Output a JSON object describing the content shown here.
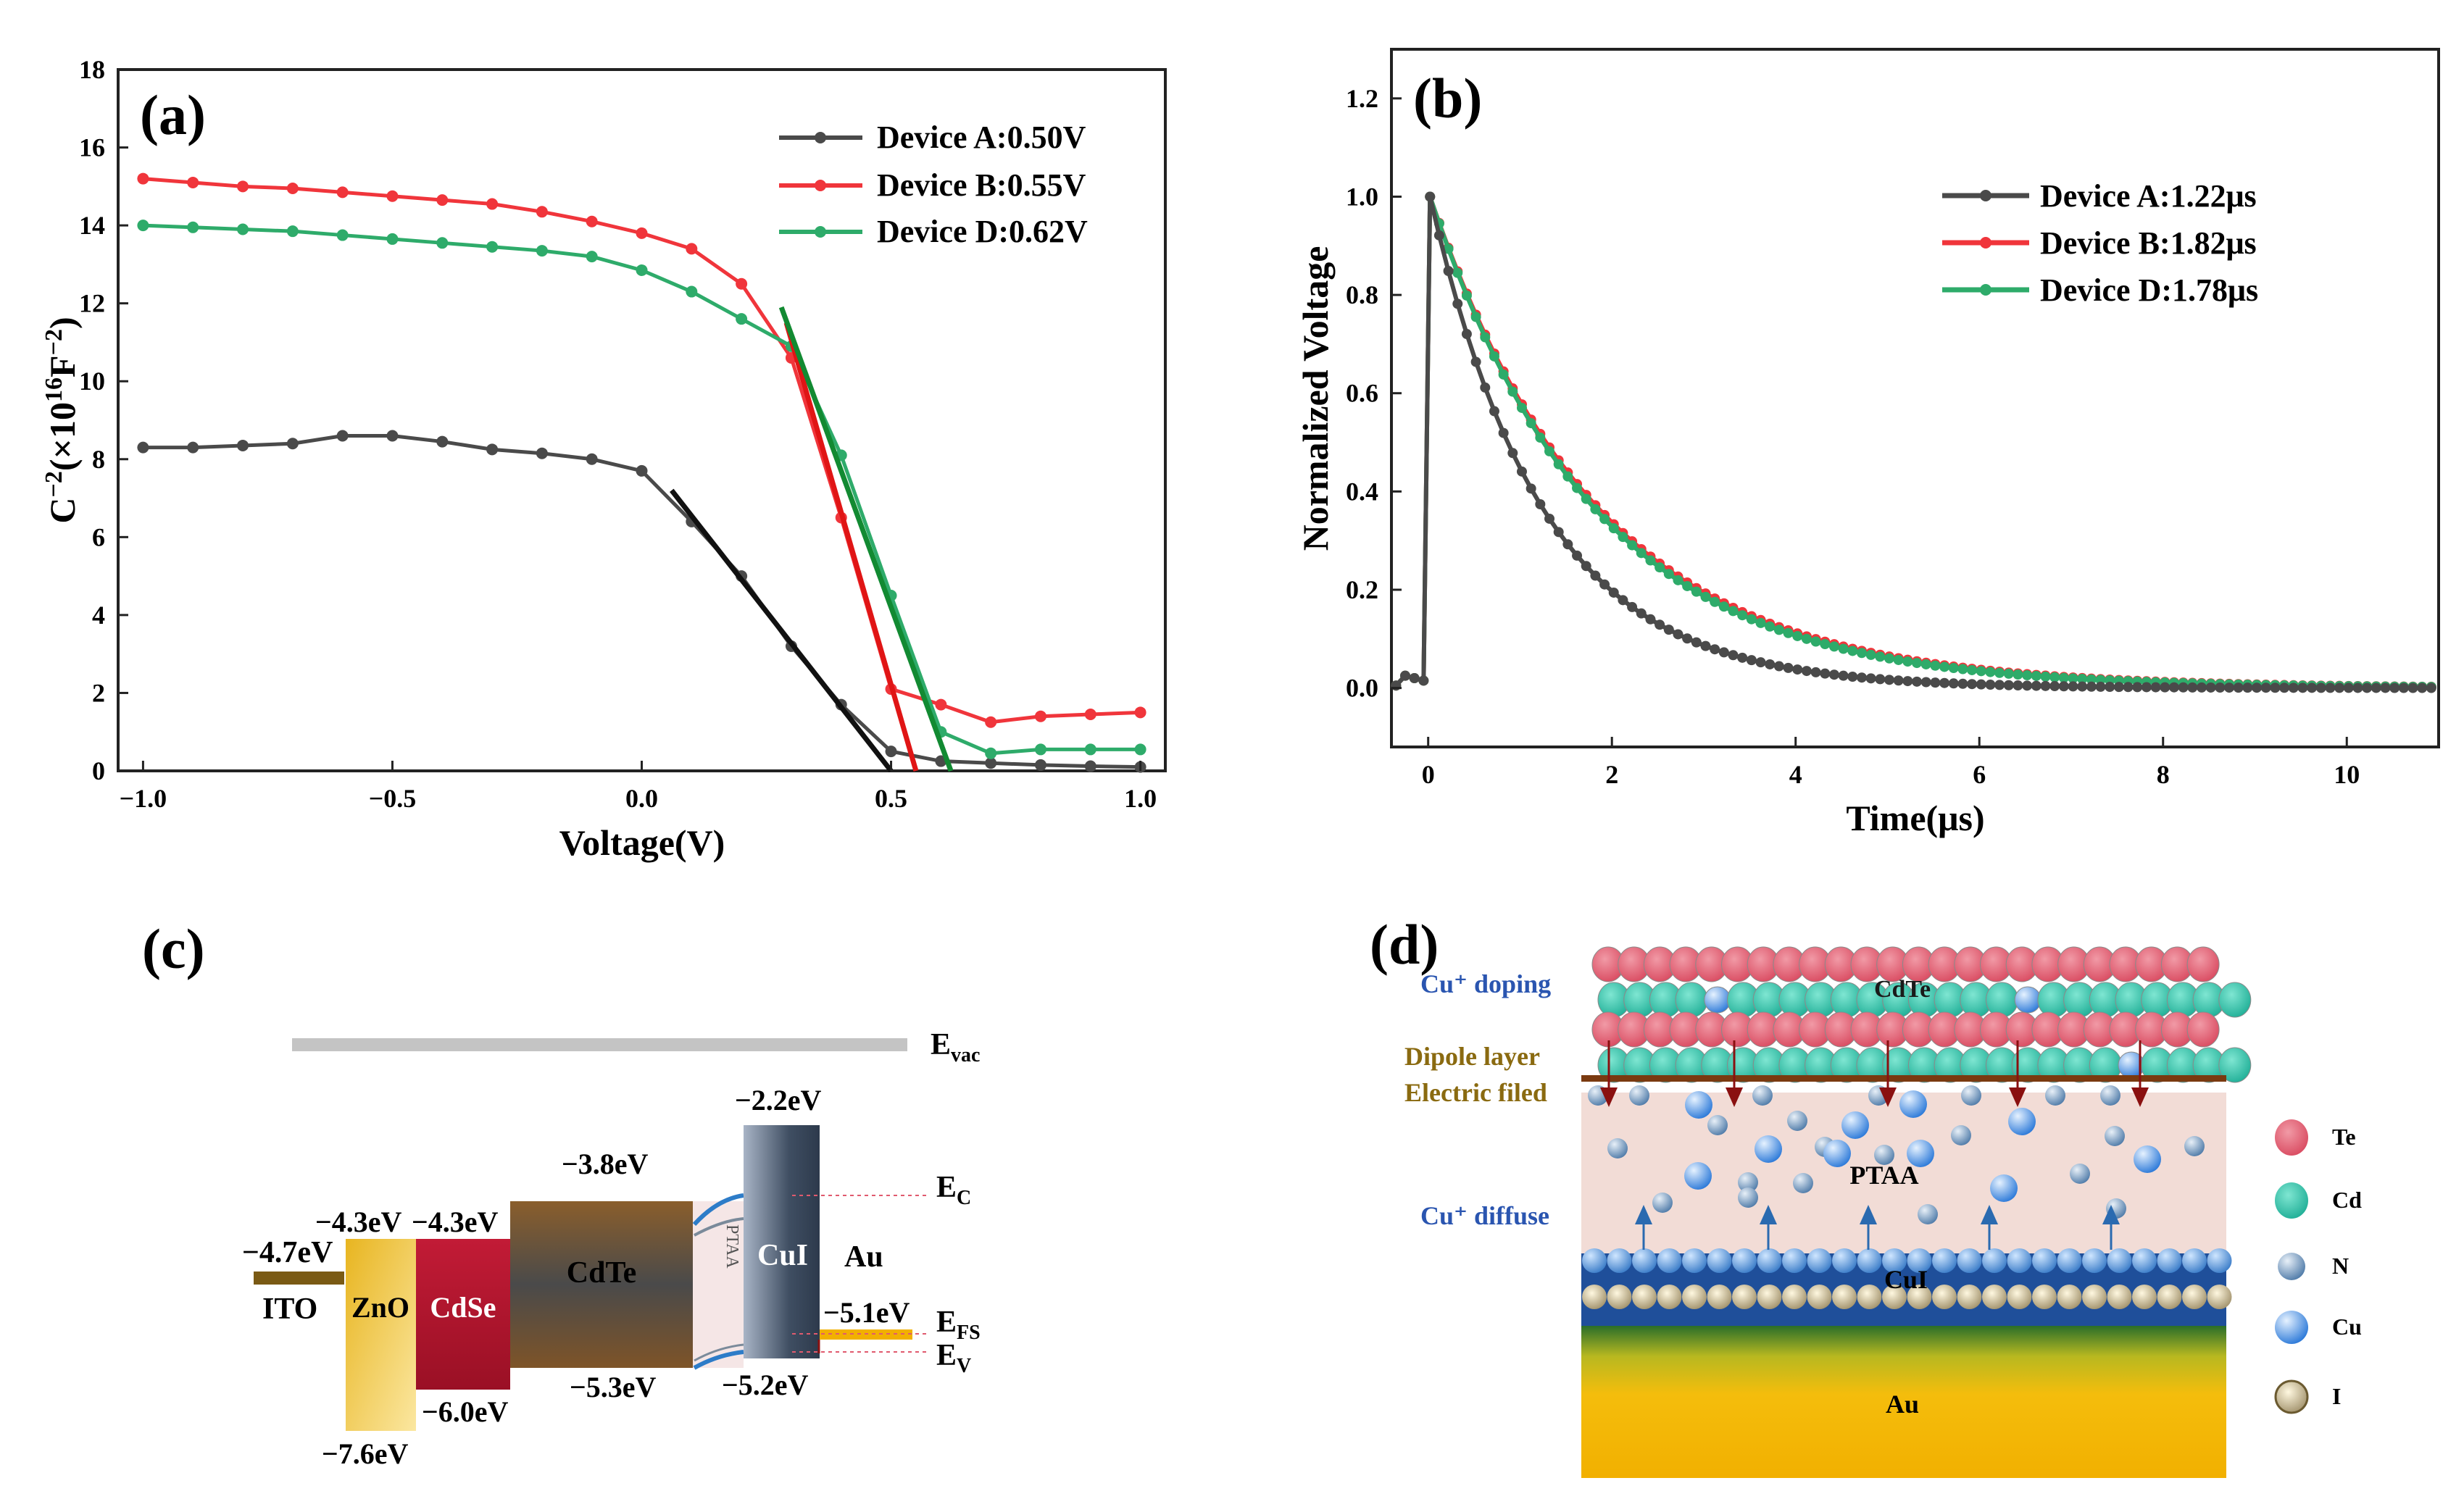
{
  "panels": {
    "a": "(a)",
    "b": "(b)",
    "c": "(c)",
    "d": "(d)"
  },
  "chart_data": [
    {
      "id": "a",
      "type": "line",
      "xlabel": "Voltage(V)",
      "ylabel_parts": {
        "base": "C",
        "sup1": "−2",
        "open": "(×10",
        "sup2": "16",
        "unit": "F",
        "sup3": "−2",
        "close": ")"
      },
      "xlim": [
        -1.05,
        1.05
      ],
      "ylim": [
        0,
        18
      ],
      "xticks": [
        -1.0,
        -0.5,
        0.0,
        0.5,
        1.0
      ],
      "xtick_labels": [
        "−1.0",
        "−0.5",
        "0.0",
        "0.5",
        "1.0"
      ],
      "yticks": [
        0,
        2,
        4,
        6,
        8,
        10,
        12,
        14,
        16,
        18
      ],
      "ytick_labels": [
        "0",
        "2",
        "4",
        "6",
        "8",
        "10",
        "12",
        "14",
        "16",
        "18"
      ],
      "x": [
        -1.0,
        -0.9,
        -0.8,
        -0.7,
        -0.6,
        -0.5,
        -0.4,
        -0.3,
        -0.2,
        -0.1,
        0.0,
        0.1,
        0.2,
        0.3,
        0.4,
        0.5,
        0.6,
        0.7,
        0.8,
        0.9,
        1.0
      ],
      "series": [
        {
          "name": "Device A:0.50V",
          "color": "#4a4a4a",
          "values": [
            8.3,
            8.3,
            8.35,
            8.4,
            8.6,
            8.6,
            8.45,
            8.25,
            8.15,
            8.0,
            7.7,
            6.4,
            5.0,
            3.2,
            1.7,
            0.5,
            0.25,
            0.2,
            0.15,
            0.12,
            0.1
          ]
        },
        {
          "name": "Device B:0.55V",
          "color": "#f0353b",
          "values": [
            15.2,
            15.1,
            15.0,
            14.95,
            14.85,
            14.75,
            14.65,
            14.55,
            14.35,
            14.1,
            13.8,
            13.4,
            12.5,
            10.6,
            6.5,
            2.1,
            1.7,
            1.25,
            1.4,
            1.45,
            1.5
          ]
        },
        {
          "name": "Device D:0.62V",
          "color": "#2eab6a",
          "values": [
            14.0,
            13.95,
            13.9,
            13.85,
            13.75,
            13.65,
            13.55,
            13.45,
            13.35,
            13.2,
            12.85,
            12.3,
            11.6,
            10.9,
            8.1,
            4.5,
            1.0,
            0.45,
            0.55,
            0.55,
            0.55
          ]
        }
      ],
      "fit_lines": [
        {
          "color": "#111111",
          "from": [
            0.06,
            7.2
          ],
          "to": [
            0.5,
            0.0
          ]
        },
        {
          "color": "#e01515",
          "from": [
            0.29,
            11.5
          ],
          "to": [
            0.55,
            0.0
          ]
        },
        {
          "color": "#128a32",
          "from": [
            0.28,
            11.9
          ],
          "to": [
            0.62,
            0.0
          ]
        }
      ]
    },
    {
      "id": "b",
      "type": "line",
      "xlabel": "Time(μs)",
      "ylabel": "Normalized Voltage",
      "xlim": [
        -0.4,
        11.0
      ],
      "ylim": [
        -0.12,
        1.3
      ],
      "xticks": [
        0,
        2,
        4,
        6,
        8,
        10
      ],
      "xtick_labels": [
        "0",
        "2",
        "4",
        "6",
        "8",
        "10"
      ],
      "yticks": [
        0.0,
        0.2,
        0.4,
        0.6,
        0.8,
        1.0,
        1.2
      ],
      "ytick_labels": [
        "0.0",
        "0.2",
        "0.4",
        "0.6",
        "0.8",
        "1.0",
        "1.2"
      ],
      "t_pre_start": -0.35,
      "t_peak": 0.02,
      "t_step": 0.1,
      "t_end": 10.95,
      "series": [
        {
          "name": "Device A:1.22μs",
          "color": "#4a4a4a",
          "tau": 1.22,
          "draw_order": 2
        },
        {
          "name": "Device B:1.82μs",
          "color": "#f0353b",
          "tau": 1.82,
          "draw_order": 0
        },
        {
          "name": "Device D:1.78μs",
          "color": "#2eab6a",
          "tau": 1.78,
          "draw_order": 1
        }
      ]
    }
  ],
  "band_diagram": {
    "evac": "E<sub>vac</sub>",
    "evac_main": "E",
    "evac_sub": "vac",
    "ec_main": "E",
    "ec_sub": "C",
    "efs_main": "E",
    "efs_sub": "FS",
    "ev_main": "E",
    "ev_sub": "V",
    "ito": "ITO",
    "zno": "ZnO",
    "cdse": "CdSe",
    "cdte": "CdTe",
    "ptaa": "PTAA",
    "cui": "CuI",
    "au": "Au",
    "levels": {
      "ito": "−4.7eV",
      "zno_cb": "−4.3eV",
      "cdse_cb": "−4.3eV",
      "zno_vb": "−7.6eV",
      "cdse_vb": "−6.0eV",
      "cdte_cb": "−3.8eV",
      "cdte_vb": "−5.3eV",
      "cui_cb": "−2.2eV",
      "cui_vb": "−5.2eV",
      "au": "−5.1eV"
    },
    "colors": {
      "ito": "#7a5a14",
      "zno": "#e8b520",
      "cdse": "#b3142c",
      "cdte": "#7a5a36",
      "cui": "#4e5d70",
      "au": "#f2b000",
      "evac": "#c4c4c4"
    }
  },
  "schematic": {
    "cu_doping": "Cu⁺ doping",
    "dipole": "Dipole layer",
    "efield": "Electric filed",
    "cu_diffuse": "Cu⁺ diffuse",
    "cdte": "CdTe",
    "ptaa": "PTAA",
    "cui": "CuI",
    "au": "Au",
    "legend": [
      "Te",
      "Cd",
      "N",
      "Cu",
      "I"
    ],
    "colors": {
      "te": "#e05a6e",
      "cd": "#2fbfa8",
      "n": "#5e86b0",
      "cu": "#3f8ae0",
      "i": "#b8a880",
      "ptaa_bg": "#f2dcd6",
      "dipole": "#7a3a10",
      "label_blue": "#2a55b0",
      "label_brown": "#8a6a10"
    }
  }
}
